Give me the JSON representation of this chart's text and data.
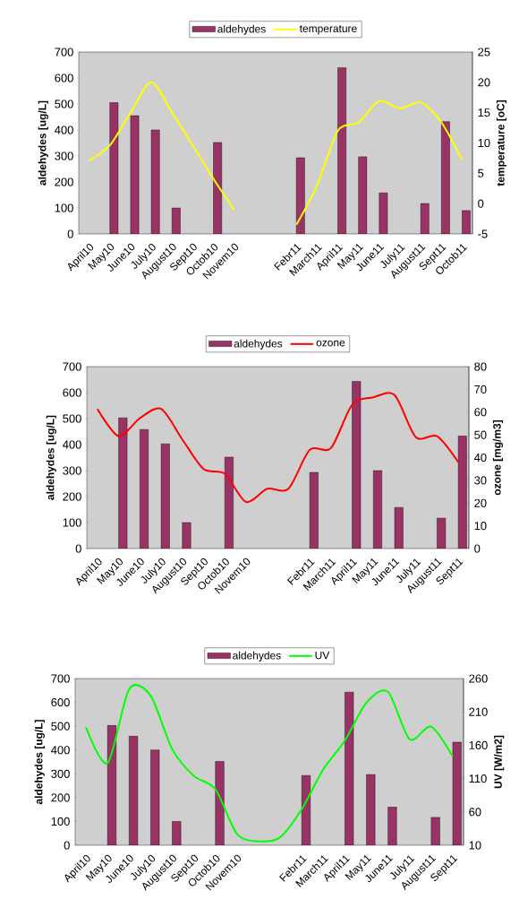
{
  "chart_data": [
    {
      "type": "bar",
      "categories": [
        "April10",
        "May10",
        "June10",
        "July10",
        "August10",
        "Sept10",
        "Octob10",
        "Novem10",
        null,
        null,
        "Febr11",
        "March11",
        "April11",
        "May11",
        "June11",
        "July11",
        "August11",
        "Sept11",
        "Octob11"
      ],
      "series": [
        {
          "name": "aldehydes",
          "color": "#993366",
          "values": [
            null,
            505,
            455,
            400,
            100,
            null,
            352,
            null,
            null,
            null,
            293,
            null,
            640,
            297,
            158,
            null,
            117,
            432,
            90
          ]
        },
        {
          "name": "temperature",
          "type": "line",
          "axis": "y2",
          "color": "#ffff00",
          "values": [
            7.1,
            9.6,
            15,
            20,
            15,
            9.6,
            4.1,
            -1,
            null,
            null,
            -3.5,
            3,
            12,
            13.4,
            16.9,
            15.7,
            16.7,
            13.4,
            7.2
          ]
        }
      ],
      "ylabel": "aldehydes [ug/L]",
      "y2label": "temperature [oC]",
      "ylim": [
        0,
        700
      ],
      "yticks": [
        0,
        100,
        200,
        300,
        400,
        500,
        600,
        700
      ],
      "y2lim": [
        -5,
        25
      ],
      "y2ticks": [
        -5,
        0,
        5,
        10,
        15,
        20,
        25
      ],
      "legend": "top"
    },
    {
      "type": "bar",
      "categories": [
        "April10",
        "May10",
        "June10",
        "July10",
        "August10",
        "Sept10",
        "Octob10",
        "Novem10",
        null,
        null,
        "Febr11",
        "March11",
        "April11",
        "May11",
        "June11",
        "July11",
        "August11",
        "Sept11"
      ],
      "series": [
        {
          "name": "aldehydes",
          "color": "#993366",
          "values": [
            null,
            503,
            458,
            403,
            100,
            null,
            352,
            null,
            null,
            null,
            293,
            null,
            643,
            300,
            158,
            null,
            117,
            433
          ]
        },
        {
          "name": "ozone",
          "type": "line",
          "axis": "y2",
          "color": "#ff0000",
          "values": [
            61.4,
            49.4,
            57.3,
            61.4,
            48,
            35,
            32.9,
            20.5,
            26.3,
            26.3,
            43.4,
            44.2,
            63.2,
            66.5,
            67.5,
            49,
            49.4,
            38
          ]
        }
      ],
      "ylabel": "aldehydes [ug/L]",
      "y2label": "ozone [mg/m3]",
      "ylim": [
        0,
        700
      ],
      "yticks": [
        0,
        100,
        200,
        300,
        400,
        500,
        600,
        700
      ],
      "y2lim": [
        0,
        80
      ],
      "y2ticks": [
        0,
        10,
        20,
        30,
        40,
        50,
        60,
        70,
        80
      ],
      "legend": "top"
    },
    {
      "type": "bar",
      "categories": [
        "April10",
        "May10",
        "June10",
        "July10",
        "August10",
        "Sept10",
        "Octob10",
        "Novem10",
        null,
        null,
        "Febr11",
        "March11",
        "April11",
        "May11",
        "June11",
        "July11",
        "August11",
        "Sept11"
      ],
      "series": [
        {
          "name": "aldehydes",
          "color": "#993366",
          "values": [
            null,
            503,
            458,
            400,
            100,
            null,
            352,
            null,
            null,
            null,
            293,
            null,
            643,
            297,
            160,
            null,
            117,
            433
          ]
        },
        {
          "name": "UV",
          "type": "line",
          "axis": "y2",
          "color": "#00ff00",
          "values": [
            187,
            133,
            244,
            234,
            154,
            114,
            94,
            27,
            16,
            22,
            64,
            124,
            167,
            224,
            240,
            169,
            188,
            143
          ]
        }
      ],
      "ylabel": "aldehydes [ug/L]",
      "y2label": "UV [W/m2]",
      "ylim": [
        0,
        700
      ],
      "yticks": [
        0,
        100,
        200,
        300,
        400,
        500,
        600,
        700
      ],
      "y2lim": [
        10,
        260
      ],
      "y2ticks": [
        10,
        60,
        110,
        160,
        210,
        260
      ],
      "legend": "top"
    }
  ]
}
